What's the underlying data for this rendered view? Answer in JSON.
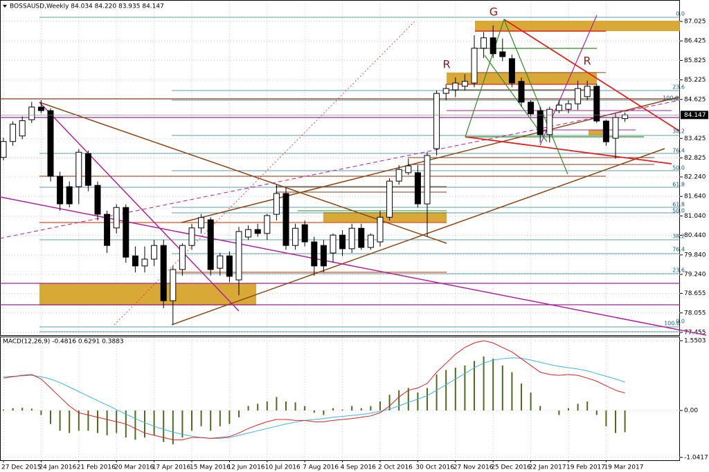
{
  "chart_data": [
    {
      "type": "candlestick",
      "title": "BOSSAUSD,Weekly 84.034 84.220 83.935 84.147",
      "categories": [
        "27 Dec 2015",
        null,
        null,
        null,
        "24 Jan 2016",
        null,
        null,
        null,
        "21 Feb 2016",
        null,
        null,
        null,
        "20 Mar 2016",
        null,
        null,
        null,
        "17 Apr 2016",
        null,
        null,
        null,
        "15 May 2016",
        null,
        null,
        null,
        "12 Jun 2016",
        null,
        null,
        null,
        "10 Jul 2016",
        null,
        null,
        null,
        "7 Aug 2016",
        null,
        null,
        null,
        "4 Sep 2016",
        null,
        null,
        null,
        "2 Oct 2016",
        null,
        null,
        null,
        "30 Oct 2016",
        null,
        null,
        null,
        "27 Nov 2016",
        null,
        null,
        null,
        "25 Dec 2016",
        null,
        null,
        null,
        "22 Jan 2017",
        null,
        null,
        null,
        "19 Feb 2017",
        null,
        null,
        null,
        "19 Mar 2017",
        null,
        null
      ],
      "open": [
        82.84,
        83.33,
        83.5,
        84.0,
        84.39,
        84.28,
        82.26,
        81.94,
        81.94,
        82.96,
        81.98,
        81.09,
        80.67,
        81.3,
        79.81,
        79.5,
        79.71,
        80.13,
        78.43,
        79.39,
        80.13,
        80.67,
        80.92,
        79.43,
        79.81,
        79.07,
        80.39,
        80.62,
        80.5,
        81.09,
        81.73,
        80.13,
        80.77,
        80.24,
        80.13,
        79.9,
        80.45,
        80.03,
        80.66,
        80.07,
        80.24,
        81.0,
        82.11,
        82.37,
        82.37,
        81.41,
        83.11,
        84.81,
        84.92,
        85.03,
        85.13,
        86.2,
        86.52,
        86.09,
        85.88,
        85.18,
        84.54,
        84.28,
        83.54,
        84.28,
        84.32,
        84.49,
        84.71,
        85.03,
        83.96,
        83.43,
        84.034
      ],
      "high": [
        83.45,
        83.95,
        84.1,
        84.55,
        84.6,
        84.35,
        82.4,
        82.1,
        83.1,
        83.05,
        82.1,
        81.2,
        81.4,
        81.4,
        80.1,
        80.1,
        80.3,
        80.3,
        79.5,
        80.2,
        80.8,
        81.1,
        81.0,
        79.9,
        79.95,
        80.7,
        80.75,
        80.8,
        81.1,
        82.0,
        81.9,
        80.8,
        80.9,
        80.4,
        80.3,
        80.5,
        80.6,
        80.8,
        80.8,
        80.5,
        81.2,
        82.2,
        82.6,
        82.8,
        82.6,
        83.0,
        84.9,
        85.1,
        85.3,
        85.4,
        86.6,
        86.7,
        86.9,
        86.5,
        86.0,
        85.3,
        84.6,
        84.4,
        84.4,
        84.6,
        84.6,
        85.2,
        85.2,
        85.1,
        84.0,
        84.2,
        84.22
      ],
      "low": [
        82.75,
        83.2,
        83.4,
        83.9,
        84.2,
        82.1,
        81.2,
        81.3,
        81.4,
        81.8,
        80.9,
        79.9,
        80.5,
        79.6,
        79.3,
        79.3,
        79.5,
        78.2,
        77.7,
        79.2,
        80.0,
        80.5,
        79.2,
        79.2,
        79.0,
        78.6,
        80.3,
        80.4,
        80.3,
        80.9,
        80.0,
        80.0,
        80.1,
        79.2,
        79.3,
        79.6,
        79.8,
        79.9,
        80.0,
        80.0,
        80.1,
        80.9,
        82.0,
        82.3,
        81.3,
        80.4,
        82.9,
        84.6,
        84.7,
        84.9,
        85.0,
        85.9,
        85.9,
        85.8,
        85.0,
        84.4,
        84.1,
        83.3,
        83.3,
        84.2,
        84.2,
        84.3,
        84.6,
        83.9,
        83.2,
        82.8,
        83.935
      ],
      "close": [
        83.33,
        83.86,
        83.97,
        84.39,
        84.28,
        82.26,
        81.41,
        81.41,
        83.0,
        81.98,
        81.09,
        80.13,
        81.3,
        79.77,
        79.5,
        79.71,
        80.13,
        78.43,
        79.39,
        80.13,
        80.67,
        80.99,
        79.39,
        79.81,
        79.18,
        80.56,
        80.62,
        80.5,
        81.05,
        81.73,
        80.13,
        80.66,
        80.24,
        79.5,
        79.5,
        80.45,
        80.03,
        80.66,
        80.07,
        80.45,
        81.0,
        82.11,
        82.47,
        82.58,
        81.41,
        82.9,
        84.81,
        84.96,
        85.13,
        85.18,
        86.2,
        86.52,
        86.03,
        85.94,
        85.13,
        84.54,
        84.18,
        83.54,
        84.32,
        84.45,
        84.49,
        84.96,
        85.03,
        83.96,
        83.32,
        84.07,
        84.147
      ],
      "up_color": "#ffffff",
      "down_color": "#000000",
      "last_price": 84.147,
      "ylim": [
        77.37,
        87.684
      ],
      "yticks": [
        {
          "value": 87.025,
          "label": "87.025"
        },
        {
          "value": 86.425,
          "label": "86.425"
        },
        {
          "value": 85.825,
          "label": "85.825"
        },
        {
          "value": 85.225,
          "label": "85.225"
        },
        {
          "value": 84.625,
          "label": "84.625"
        },
        {
          "value": 83.425,
          "label": "83.425"
        },
        {
          "value": 82.825,
          "label": "82.825"
        },
        {
          "value": 82.24,
          "label": "82.240"
        },
        {
          "value": 81.64,
          "label": "81.640"
        },
        {
          "value": 81.04,
          "label": "81.040"
        },
        {
          "value": 80.44,
          "label": "80.440"
        },
        {
          "value": 79.84,
          "label": "79.840"
        },
        {
          "value": 79.24,
          "label": "79.240"
        },
        {
          "value": 78.655,
          "label": "78.655"
        },
        {
          "value": 78.055,
          "label": "78.055"
        },
        {
          "value": 77.455,
          "label": "77.455"
        }
      ],
      "grid": true,
      "annotations": [
        "G",
        "R",
        "R",
        "0.0",
        "23.6",
        "100.0",
        "38.2",
        "76.4",
        "50.0",
        "61.8",
        "61.8",
        "50.0",
        "38.2",
        "76.4",
        "23.6",
        "0.0",
        "100.0"
      ]
    },
    {
      "type": "macd",
      "title": "MACD(12,26,9) -0.4816 0.6291 0.3883",
      "series": [
        {
          "kind": "bar",
          "color": "#4b6b1f",
          "values": [
            0.02,
            0.05,
            0.06,
            0.04,
            -0.1,
            -0.3,
            -0.45,
            -0.5,
            -0.45,
            -0.45,
            -0.5,
            -0.55,
            -0.5,
            -0.6,
            -0.65,
            -0.6,
            -0.55,
            -0.7,
            -0.75,
            -0.6,
            -0.45,
            -0.35,
            -0.45,
            -0.35,
            -0.3,
            -0.15,
            0.1,
            0.15,
            0.2,
            0.3,
            0.2,
            0.18,
            0.1,
            -0.05,
            -0.1,
            0.05,
            0.02,
            0.1,
            0.05,
            0.1,
            0.2,
            0.35,
            0.45,
            0.5,
            0.4,
            0.5,
            0.8,
            0.9,
            0.95,
            1.0,
            1.1,
            1.2,
            1.15,
            1.0,
            0.85,
            0.6,
            0.4,
            0.1,
            0.0,
            -0.1,
            0.05,
            0.15,
            0.2,
            -0.1,
            -0.35,
            -0.5,
            -0.4816
          ]
        },
        {
          "kind": "line",
          "color": "#3cb4e6",
          "values": [
            0.75,
            0.76,
            0.77,
            0.78,
            0.75,
            0.7,
            0.62,
            0.52,
            0.42,
            0.32,
            0.22,
            0.12,
            0.02,
            -0.08,
            -0.18,
            -0.27,
            -0.35,
            -0.42,
            -0.48,
            -0.53,
            -0.57,
            -0.6,
            -0.62,
            -0.62,
            -0.6,
            -0.55,
            -0.5,
            -0.45,
            -0.4,
            -0.35,
            -0.3,
            -0.26,
            -0.22,
            -0.2,
            -0.18,
            -0.15,
            -0.13,
            -0.11,
            -0.09,
            -0.06,
            -0.02,
            0.03,
            0.1,
            0.18,
            0.25,
            0.33,
            0.45,
            0.57,
            0.7,
            0.82,
            0.95,
            1.05,
            1.12,
            1.15,
            1.17,
            1.16,
            1.12,
            1.07,
            1.02,
            0.98,
            0.95,
            0.92,
            0.88,
            0.82,
            0.76,
            0.7,
            0.6291
          ]
        },
        {
          "kind": "line",
          "color": "#e02020",
          "values": [
            0.72,
            0.75,
            0.78,
            0.8,
            0.7,
            0.5,
            0.3,
            0.1,
            -0.05,
            -0.1,
            -0.15,
            -0.2,
            -0.25,
            -0.3,
            -0.4,
            -0.5,
            -0.55,
            -0.6,
            -0.65,
            -0.65,
            -0.6,
            -0.6,
            -0.62,
            -0.6,
            -0.58,
            -0.5,
            -0.4,
            -0.32,
            -0.25,
            -0.2,
            -0.2,
            -0.22,
            -0.22,
            -0.25,
            -0.25,
            -0.22,
            -0.2,
            -0.18,
            -0.15,
            -0.12,
            -0.05,
            0.1,
            0.3,
            0.45,
            0.5,
            0.6,
            0.85,
            1.05,
            1.25,
            1.4,
            1.5,
            1.55,
            1.5,
            1.4,
            1.3,
            1.15,
            1.0,
            0.85,
            0.8,
            0.78,
            0.8,
            0.78,
            0.72,
            0.65,
            0.55,
            0.45,
            0.3883
          ]
        }
      ],
      "ylim": [
        -1.105,
        1.642
      ],
      "yticks": [
        {
          "value": 1.5503,
          "label": "1.5503"
        },
        {
          "value": 0,
          "label": "0.00"
        },
        {
          "value": -1.0417,
          "label": "-1.0417"
        }
      ],
      "grid": true
    }
  ]
}
